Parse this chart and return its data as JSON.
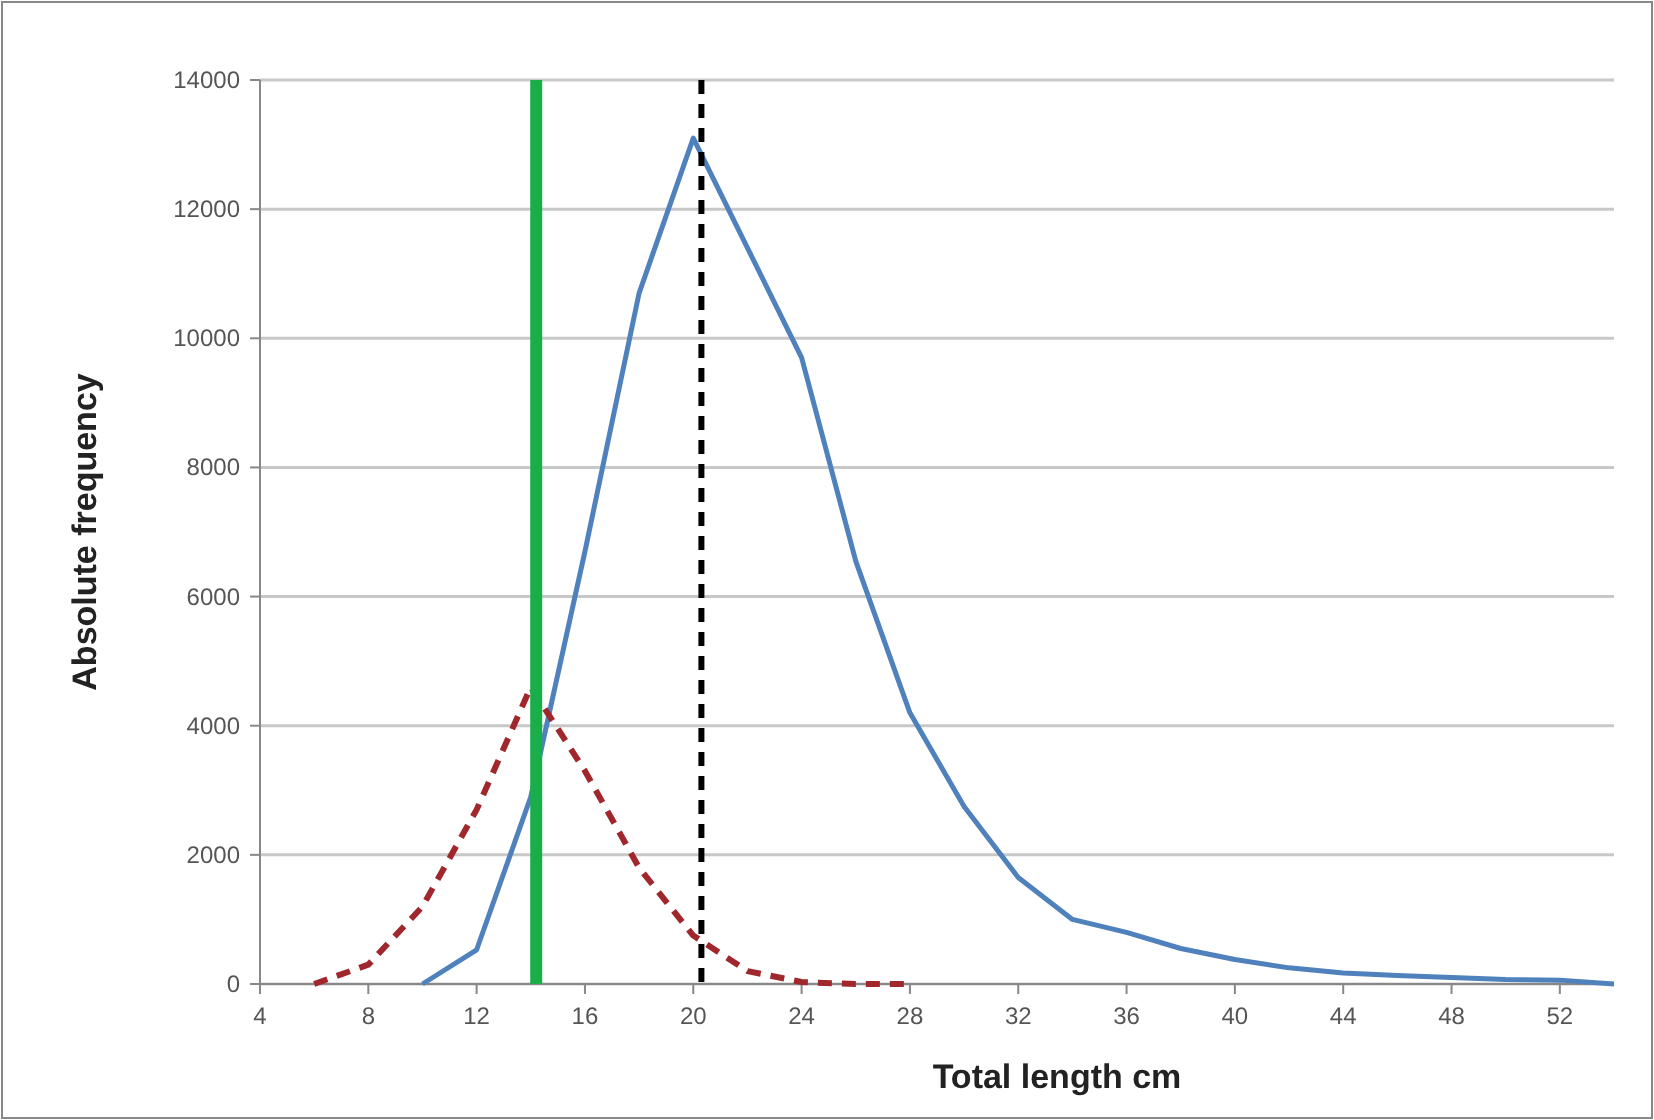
{
  "chart_data": {
    "type": "line",
    "xlabel": "Total length cm",
    "ylabel": "Absolute frequency",
    "xlim": [
      4,
      54
    ],
    "xticks": [
      4,
      8,
      12,
      16,
      20,
      24,
      28,
      32,
      36,
      40,
      44,
      48,
      52
    ],
    "ylim": [
      0,
      14000
    ],
    "yticks": [
      0,
      2000,
      4000,
      6000,
      8000,
      10000,
      12000,
      14000
    ],
    "grid": "y",
    "marker": "none",
    "series": [
      {
        "color": "#4f81bd",
        "line_style": "solid",
        "x": [
          10,
          12,
          14,
          16,
          18,
          20,
          22,
          24,
          26,
          28,
          30,
          32,
          34,
          36,
          38,
          40,
          42,
          44,
          46,
          48,
          50,
          52,
          54
        ],
        "values": [
          0,
          530,
          2900,
          6700,
          10700,
          13100,
          11400,
          9700,
          6550,
          4200,
          2750,
          1650,
          1000,
          800,
          550,
          380,
          250,
          170,
          130,
          100,
          70,
          60,
          0
        ]
      },
      {
        "color": "#a0282d",
        "line_style": "dashed",
        "x": [
          6,
          8,
          10,
          12,
          14,
          16,
          18,
          20,
          22,
          24,
          26,
          28
        ],
        "values": [
          0,
          300,
          1200,
          2700,
          4600,
          3300,
          1800,
          750,
          200,
          30,
          0,
          0
        ]
      }
    ],
    "ref_lines": [
      {
        "axis": "x",
        "value": 14.2,
        "color": "#1aae4a",
        "line_style": "solid"
      },
      {
        "axis": "x",
        "value": 20.3,
        "color": "#000000",
        "line_style": "dashed"
      }
    ]
  }
}
